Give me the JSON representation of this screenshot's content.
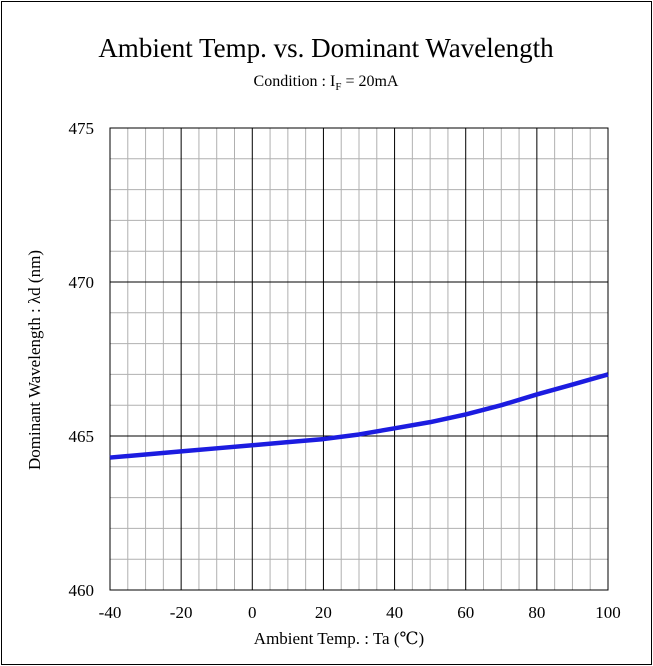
{
  "chart_data": {
    "type": "line",
    "title": "Ambient Temp. vs. Dominant Wavelength",
    "subtitle_prefix": "Condition : I",
    "subtitle_sub": "F",
    "subtitle_suffix": " = 20mA",
    "xlabel": "Ambient Temp. : Ta (℃)",
    "ylabel": "Dominant Wavelength : λd (nm)",
    "xlim": [
      -40,
      100
    ],
    "ylim": [
      460,
      475
    ],
    "x_major_step": 20,
    "x_minor_step": 5,
    "y_major_step": 5,
    "y_minor_step": 1,
    "x_ticks": [
      "-40",
      "-20",
      "0",
      "20",
      "40",
      "60",
      "80",
      "100"
    ],
    "y_ticks": [
      "460",
      "465",
      "470",
      "475"
    ],
    "grid": true,
    "line_color": "#1c1ce0",
    "series": [
      {
        "x": [
          -40,
          -30,
          -20,
          -10,
          0,
          10,
          20,
          30,
          40,
          50,
          60,
          70,
          80,
          90,
          100
        ],
        "y": [
          464.3,
          464.4,
          464.5,
          464.6,
          464.7,
          464.8,
          464.9,
          465.05,
          465.25,
          465.45,
          465.7,
          466.0,
          466.35,
          466.67,
          467.0
        ]
      }
    ]
  }
}
